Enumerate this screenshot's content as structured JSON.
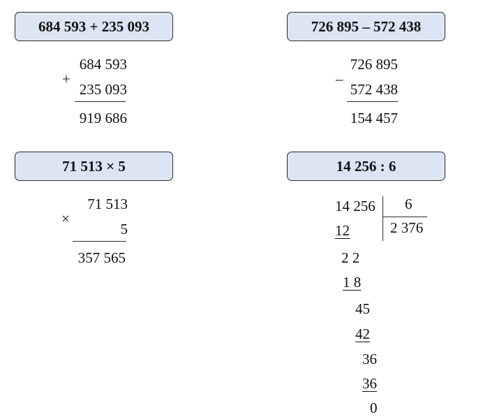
{
  "addition": {
    "header": "684 593 + 235 093",
    "operand1": "684 593",
    "sign": "+",
    "operand2": "235 093",
    "result": "919 686"
  },
  "subtraction": {
    "header": "726 895 – 572 438",
    "operand1": "726 895",
    "sign": "–",
    "operand2": "572 438",
    "result": "154 457"
  },
  "multiplication": {
    "header": "71 513 × 5",
    "operand1": "71 513",
    "sign": "×",
    "operand2": "5",
    "result": "357 565"
  },
  "division": {
    "header": "14 256 : 6",
    "dividend": "14 256",
    "divisor": "6",
    "quotient": "2 376",
    "steps": [
      "12",
      "2 2",
      "1 8",
      "45",
      "42",
      "36",
      "36",
      "0"
    ]
  }
}
